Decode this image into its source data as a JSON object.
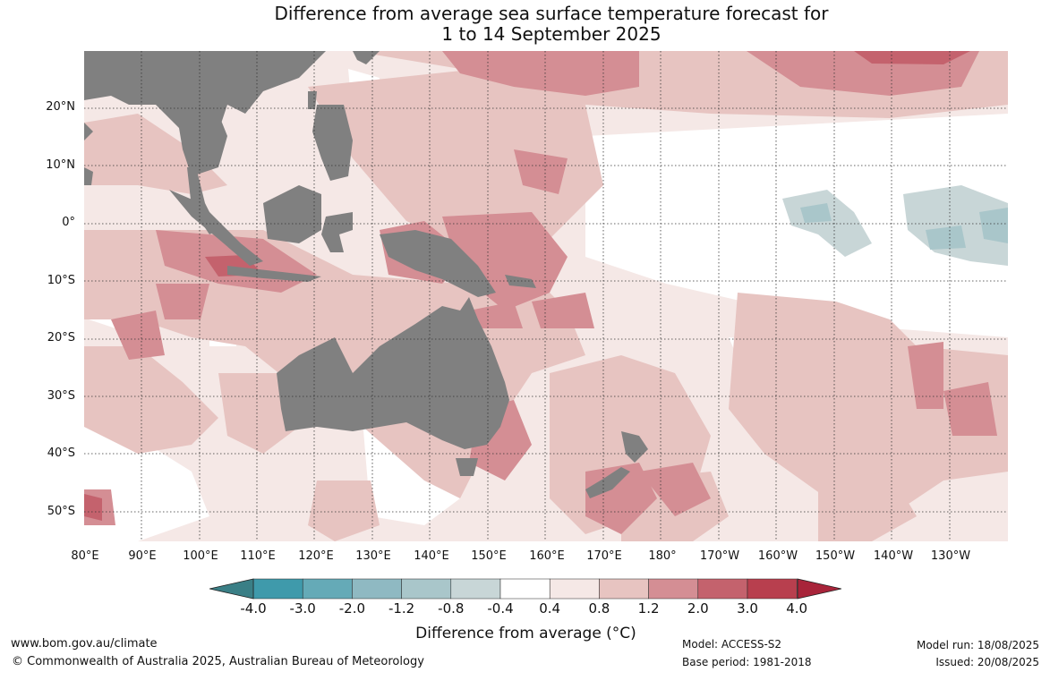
{
  "title": {
    "line1": "Difference from average sea surface temperature forecast for",
    "line2": "1 to 14 September 2025"
  },
  "lat_labels": [
    "20°N",
    "10°N",
    "0°",
    "10°S",
    "20°S",
    "30°S",
    "40°S",
    "50°S"
  ],
  "lon_labels": [
    "80°E",
    "90°E",
    "100°E",
    "110°E",
    "120°E",
    "130°E",
    "140°E",
    "150°E",
    "160°E",
    "170°E",
    "180°",
    "170°W",
    "160°W",
    "150°W",
    "140°W",
    "130°W"
  ],
  "colorbar": {
    "ticks": [
      "-4.0",
      "-3.0",
      "-2.0",
      "-1.2",
      "-0.8",
      "-0.4",
      "0.4",
      "0.8",
      "1.2",
      "2.0",
      "3.0",
      "4.0"
    ],
    "colors": [
      "#3f9aab",
      "#65aab7",
      "#8fb9c2",
      "#a9c6ca",
      "#c8d6d7",
      "#ffffff",
      "#f5e8e6",
      "#e7c4c1",
      "#d48e94",
      "#c4626d",
      "#b83f4e"
    ],
    "under_color": "#3a7f86",
    "over_color": "#a8243a",
    "label": "Difference from average (°C)"
  },
  "footer": {
    "url": "www.bom.gov.au/climate",
    "copyright": "© Commonwealth of Australia 2025, Australian Bureau of Meteorology",
    "model": "Model: ACCESS-S2",
    "base_period": "Base period: 1981-2018",
    "model_run": "Model run: 18/08/2025",
    "issued": "Issued: 20/08/2025"
  },
  "colors": {
    "land": "#808080",
    "grid": "#333333"
  }
}
